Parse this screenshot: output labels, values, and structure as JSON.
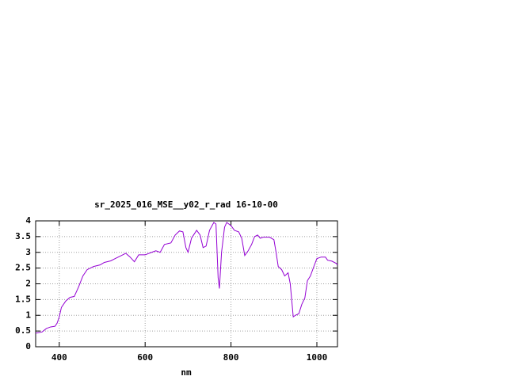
{
  "chart_data": {
    "type": "line",
    "title": "sr_2025_016_MSE__y02_r_rad 16-10-00",
    "x_label": "nm",
    "xlim": [
      345,
      1048
    ],
    "xticks": [
      400,
      600,
      800,
      1000
    ],
    "ylim": [
      0,
      4
    ],
    "yticks": [
      0,
      0.5,
      1,
      1.5,
      2,
      2.5,
      3,
      3.5,
      4
    ],
    "grid": true,
    "x": [
      345,
      360,
      370,
      380,
      390,
      395,
      400,
      405,
      415,
      425,
      435,
      445,
      455,
      465,
      480,
      495,
      505,
      520,
      530,
      545,
      555,
      565,
      575,
      585,
      600,
      615,
      625,
      635,
      645,
      660,
      670,
      680,
      688,
      695,
      700,
      708,
      720,
      728,
      735,
      742,
      750,
      760,
      765,
      770,
      773,
      778,
      785,
      790,
      800,
      808,
      818,
      825,
      832,
      840,
      848,
      855,
      862,
      868,
      875,
      890,
      900,
      905,
      910,
      918,
      925,
      933,
      938,
      945,
      950,
      958,
      965,
      972,
      978,
      985,
      993,
      1000,
      1010,
      1020,
      1025,
      1035,
      1045,
      1048
    ],
    "series": [
      {
        "color": "#9400d3",
        "values": [
          0.43,
          0.47,
          0.58,
          0.63,
          0.65,
          0.75,
          0.95,
          1.25,
          1.45,
          1.57,
          1.6,
          1.9,
          2.25,
          2.45,
          2.55,
          2.6,
          2.68,
          2.73,
          2.8,
          2.9,
          2.97,
          2.85,
          2.7,
          2.92,
          2.92,
          3.0,
          3.05,
          3.0,
          3.25,
          3.3,
          3.55,
          3.68,
          3.65,
          3.15,
          3.0,
          3.45,
          3.7,
          3.55,
          3.15,
          3.2,
          3.7,
          3.95,
          3.9,
          2.2,
          1.85,
          3.0,
          3.8,
          3.95,
          3.85,
          3.7,
          3.65,
          3.45,
          2.9,
          3.05,
          3.25,
          3.5,
          3.55,
          3.45,
          3.48,
          3.48,
          3.4,
          3.0,
          2.55,
          2.45,
          2.25,
          2.35,
          2.0,
          0.95,
          1.0,
          1.05,
          1.35,
          1.55,
          2.1,
          2.25,
          2.55,
          2.8,
          2.85,
          2.85,
          2.75,
          2.72,
          2.65,
          2.6
        ]
      }
    ]
  }
}
